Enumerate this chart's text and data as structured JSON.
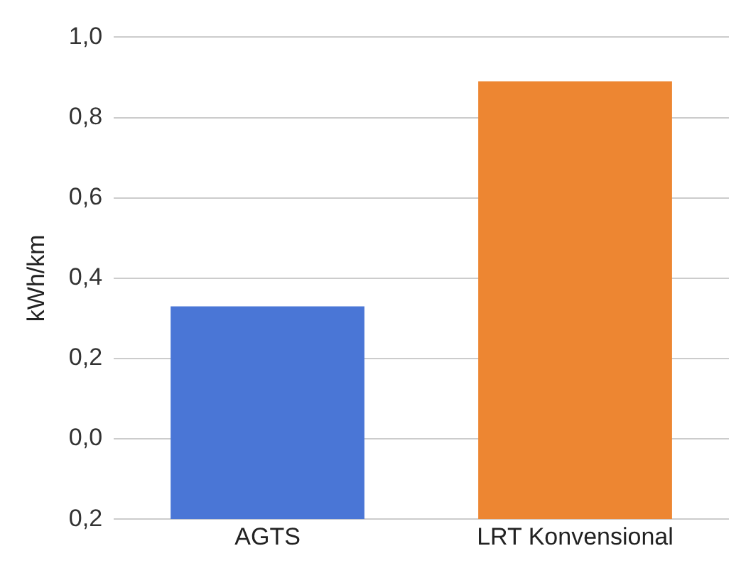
{
  "chart_data": {
    "type": "bar",
    "ylabel": "kWh/km",
    "categories": [
      "AGTS",
      "LRT Konvensional"
    ],
    "values": [
      0.53,
      1.09
    ],
    "base": [
      -0.2,
      -0.2
    ],
    "colors": [
      "#4a76d6",
      "#ed8632"
    ],
    "ylim": [
      -0.2,
      1.0
    ],
    "yticks": [
      {
        "value": -0.2,
        "label": "0,2"
      },
      {
        "value": 0,
        "label": "0,0"
      },
      {
        "value": 0.2,
        "label": "0,2"
      },
      {
        "value": 0.4,
        "label": "0,4"
      },
      {
        "value": 0.6,
        "label": "0,6"
      },
      {
        "value": 0.8,
        "label": "0,8"
      },
      {
        "value": 1.0,
        "label": "1,0"
      }
    ],
    "grid": "y",
    "legend": false
  }
}
